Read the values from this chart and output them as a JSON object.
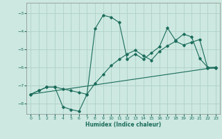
{
  "title": "",
  "xlabel": "Humidex (Indice chaleur)",
  "bg_color": "#cce8e0",
  "grid_color": "#aaccC4",
  "line_color": "#1a6b5a",
  "xlim": [
    -0.5,
    23.5
  ],
  "ylim": [
    -8.6,
    -2.4
  ],
  "xticks": [
    0,
    1,
    2,
    3,
    4,
    5,
    6,
    7,
    8,
    9,
    10,
    11,
    12,
    13,
    14,
    15,
    16,
    17,
    18,
    19,
    20,
    21,
    22,
    23
  ],
  "yticks": [
    -8,
    -7,
    -6,
    -5,
    -4,
    -3
  ],
  "line1_x": [
    0,
    1,
    2,
    3,
    4,
    5,
    6,
    7,
    8,
    9,
    10,
    11,
    12,
    13,
    14,
    15,
    16,
    17,
    18,
    19,
    20,
    21,
    22,
    23
  ],
  "line1_y": [
    -7.5,
    -7.3,
    -7.1,
    -7.1,
    -8.2,
    -8.35,
    -8.45,
    -7.5,
    -3.85,
    -3.1,
    -3.2,
    -3.5,
    -5.55,
    -5.25,
    -5.55,
    -5.2,
    -4.85,
    -3.8,
    -4.5,
    -4.15,
    -4.3,
    -5.5,
    -6.0,
    -6.0
  ],
  "line2_x": [
    0,
    1,
    2,
    3,
    4,
    5,
    6,
    7,
    8,
    9,
    10,
    11,
    12,
    13,
    14,
    15,
    16,
    17,
    18,
    19,
    20,
    21,
    22,
    23
  ],
  "line2_y": [
    -7.5,
    -7.3,
    -7.1,
    -7.1,
    -7.2,
    -7.3,
    -7.4,
    -7.5,
    -6.9,
    -6.4,
    -5.9,
    -5.55,
    -5.25,
    -5.05,
    -5.35,
    -5.6,
    -5.1,
    -4.8,
    -4.55,
    -4.75,
    -4.6,
    -4.45,
    -6.05,
    -6.05
  ],
  "line3_x": [
    0,
    23
  ],
  "line3_y": [
    -7.5,
    -6.0
  ]
}
